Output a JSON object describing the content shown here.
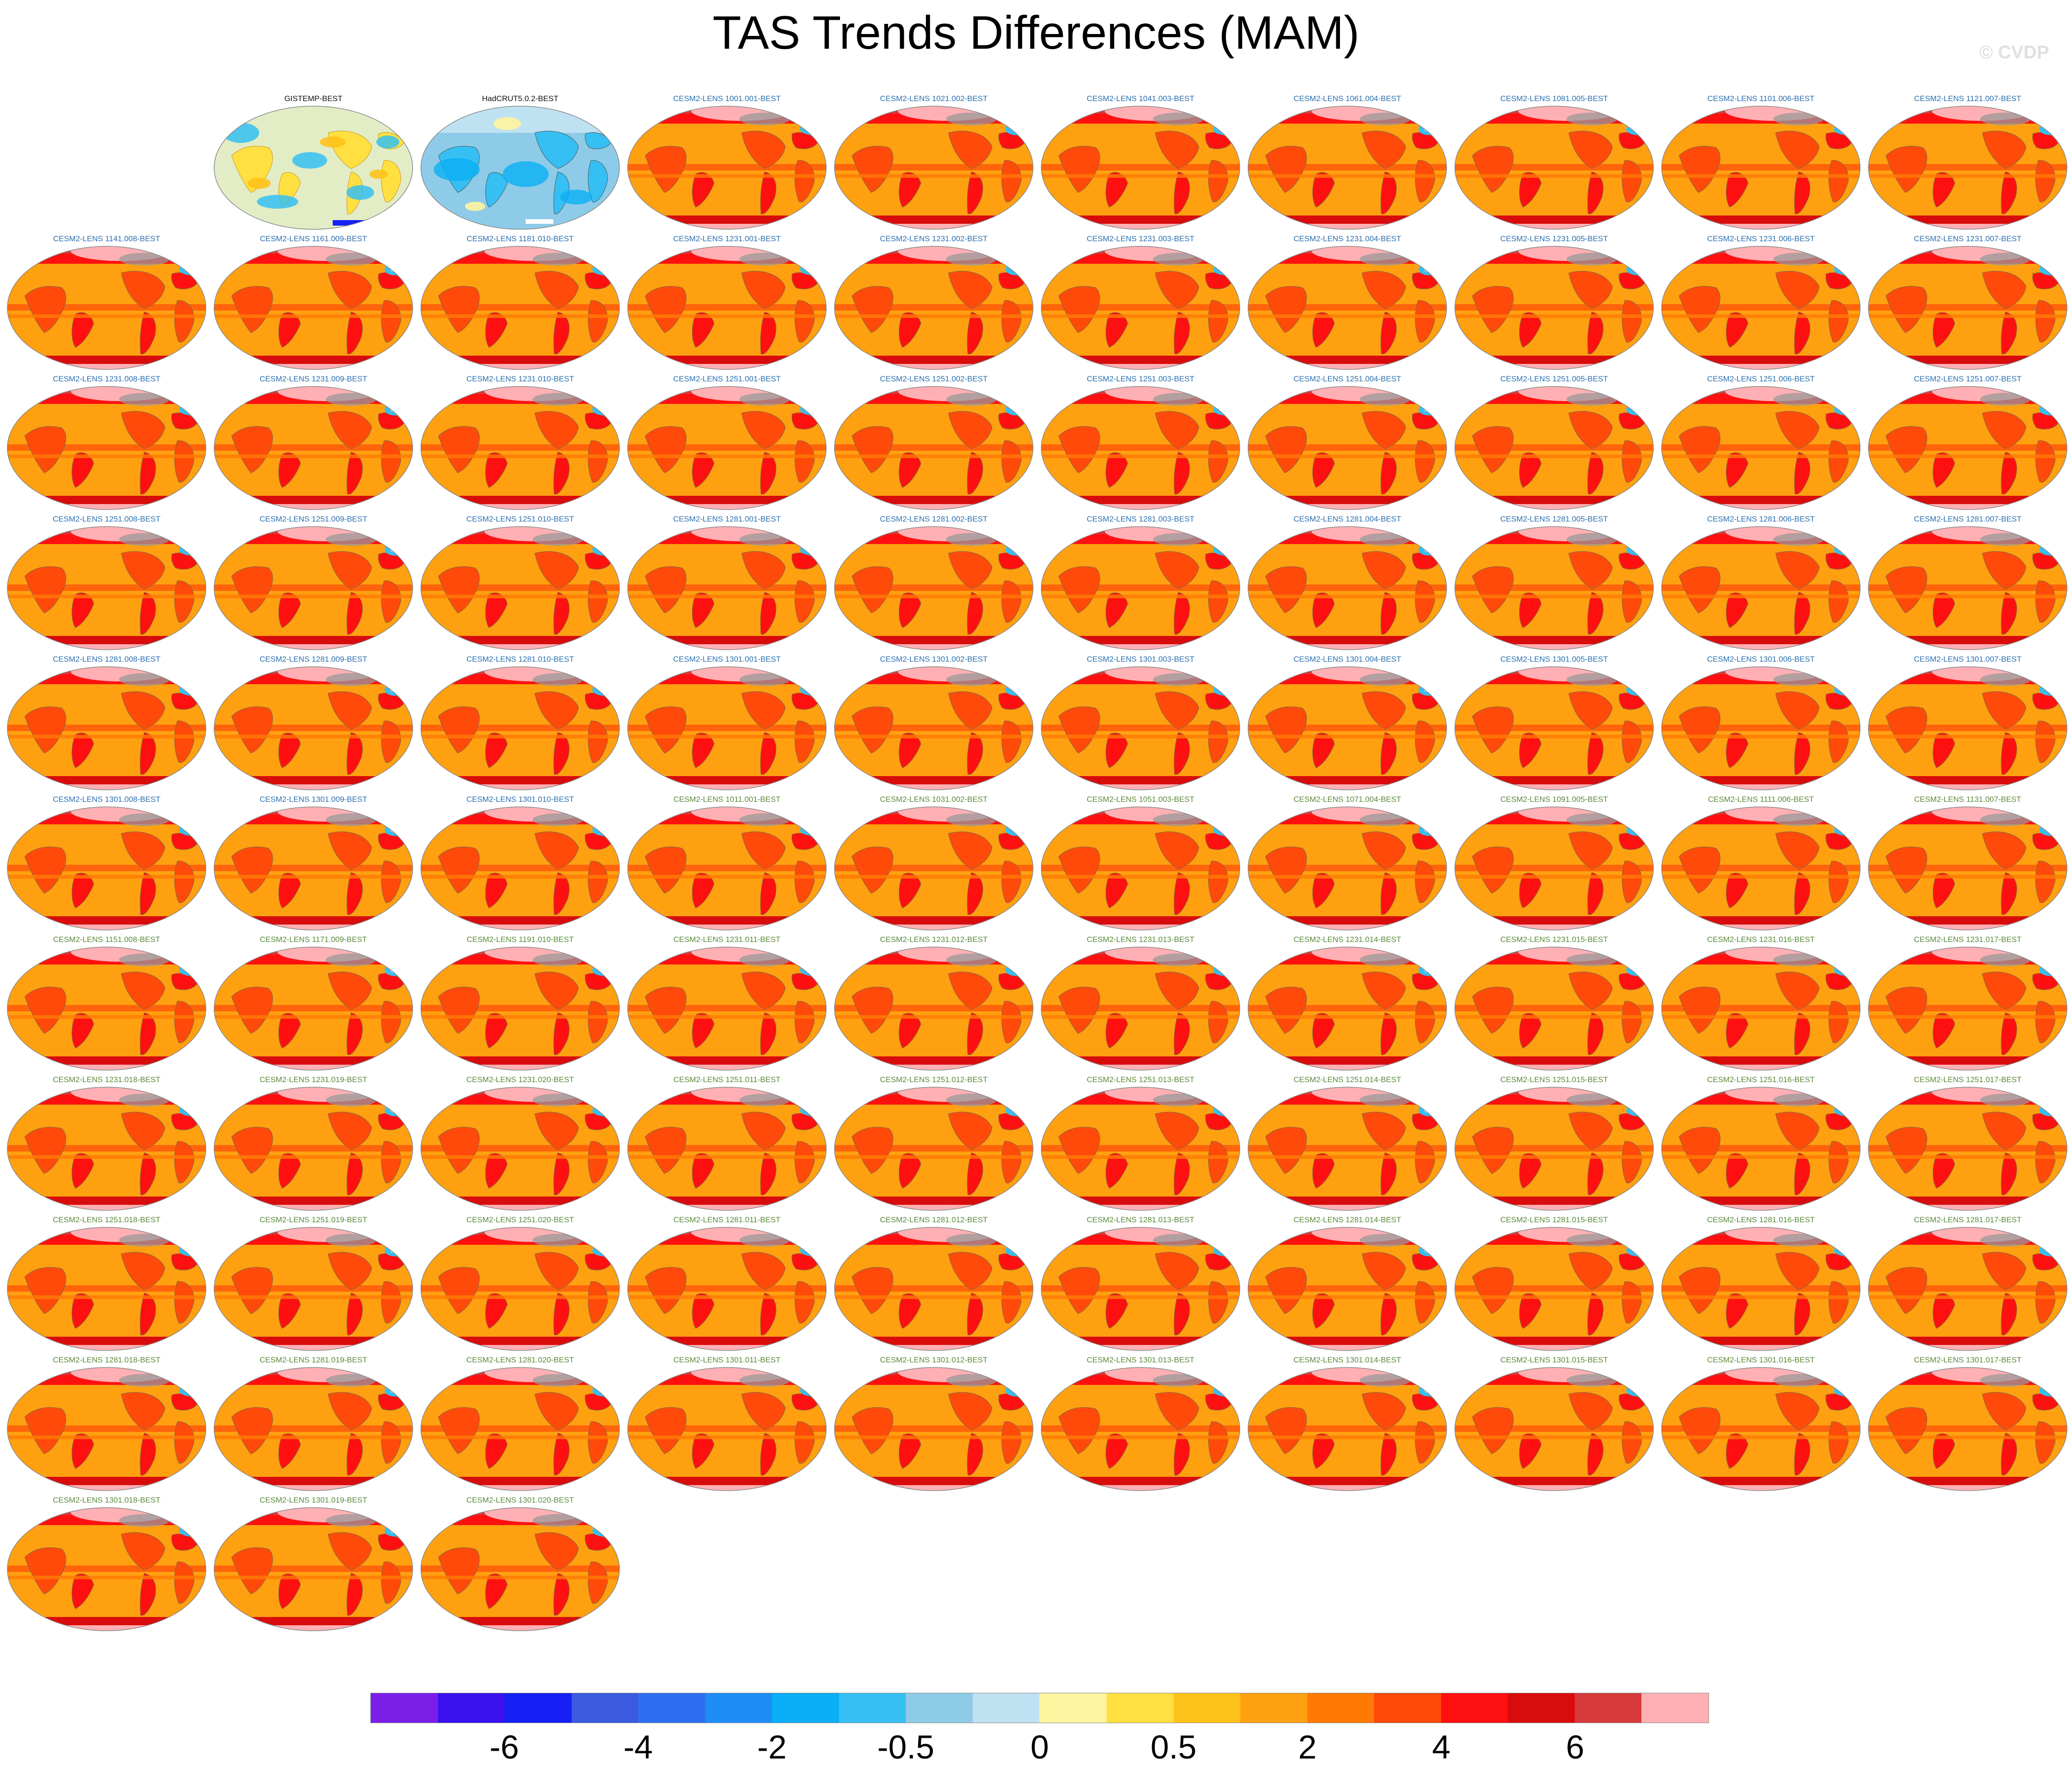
{
  "title": "TAS Trends Differences (MAM)",
  "copyright": "© CVDP",
  "colors": {
    "cb": [
      "#7b1fe8",
      "#3a12f0",
      "#1620f5",
      "#3a5be0",
      "#2d6ff0",
      "#1e8df5",
      "#0aaff5",
      "#35bff2",
      "#8ecbe8",
      "#bfe2f2",
      "#fff5a0",
      "#ffe040",
      "#ffc21a",
      "#ffa010",
      "#ff7a05",
      "#ff4a0a",
      "#ff1010",
      "#d80c0c",
      "#d63a3a",
      "#ffb0b4"
    ],
    "land_obs": "#d0a030"
  },
  "panel_kinds": {
    "obs_gistemp": "obs1",
    "obs_hadcrut": "obs2",
    "model": "model"
  },
  "colorbar_labels": [
    "-6",
    "-4",
    "-2",
    "-0.5",
    "0",
    "0.5",
    "2",
    "4",
    "6"
  ],
  "panels": [
    {
      "label": "GISTEMP-BEST",
      "color": "black",
      "kind": "obs1"
    },
    {
      "label": "HadCRUT5.0.2-BEST",
      "color": "black",
      "kind": "obs2"
    },
    {
      "label": "CESM2-LENS 1001.001-BEST",
      "color": "blue",
      "kind": "model"
    },
    {
      "label": "CESM2-LENS 1021.002-BEST",
      "color": "blue",
      "kind": "model"
    },
    {
      "label": "CESM2-LENS 1041.003-BEST",
      "color": "blue",
      "kind": "model"
    },
    {
      "label": "CESM2-LENS 1061.004-BEST",
      "color": "blue",
      "kind": "model"
    },
    {
      "label": "CESM2-LENS 1081.005-BEST",
      "color": "blue",
      "kind": "model"
    },
    {
      "label": "CESM2-LENS 1101.006-BEST",
      "color": "blue",
      "kind": "model"
    },
    {
      "label": "CESM2-LENS 1121.007-BEST",
      "color": "blue",
      "kind": "model"
    },
    {
      "label": "CESM2-LENS 1141.008-BEST",
      "color": "blue",
      "kind": "model"
    },
    {
      "label": "CESM2-LENS 1161.009-BEST",
      "color": "blue",
      "kind": "model"
    },
    {
      "label": "CESM2-LENS 1181.010-BEST",
      "color": "blue",
      "kind": "model"
    },
    {
      "label": "CESM2-LENS 1231.001-BEST",
      "color": "blue",
      "kind": "model"
    },
    {
      "label": "CESM2-LENS 1231.002-BEST",
      "color": "blue",
      "kind": "model"
    },
    {
      "label": "CESM2-LENS 1231.003-BEST",
      "color": "blue",
      "kind": "model"
    },
    {
      "label": "CESM2-LENS 1231.004-BEST",
      "color": "blue",
      "kind": "model"
    },
    {
      "label": "CESM2-LENS 1231.005-BEST",
      "color": "blue",
      "kind": "model"
    },
    {
      "label": "CESM2-LENS 1231.006-BEST",
      "color": "blue",
      "kind": "model"
    },
    {
      "label": "CESM2-LENS 1231.007-BEST",
      "color": "blue",
      "kind": "model"
    },
    {
      "label": "CESM2-LENS 1231.008-BEST",
      "color": "blue",
      "kind": "model"
    },
    {
      "label": "CESM2-LENS 1231.009-BEST",
      "color": "blue",
      "kind": "model"
    },
    {
      "label": "CESM2-LENS 1231.010-BEST",
      "color": "blue",
      "kind": "model"
    },
    {
      "label": "CESM2-LENS 1251.001-BEST",
      "color": "blue",
      "kind": "model"
    },
    {
      "label": "CESM2-LENS 1251.002-BEST",
      "color": "blue",
      "kind": "model"
    },
    {
      "label": "CESM2-LENS 1251.003-BEST",
      "color": "blue",
      "kind": "model"
    },
    {
      "label": "CESM2-LENS 1251.004-BEST",
      "color": "blue",
      "kind": "model"
    },
    {
      "label": "CESM2-LENS 1251.005-BEST",
      "color": "blue",
      "kind": "model"
    },
    {
      "label": "CESM2-LENS 1251.006-BEST",
      "color": "blue",
      "kind": "model"
    },
    {
      "label": "CESM2-LENS 1251.007-BEST",
      "color": "blue",
      "kind": "model"
    },
    {
      "label": "CESM2-LENS 1251.008-BEST",
      "color": "blue",
      "kind": "model"
    },
    {
      "label": "CESM2-LENS 1251.009-BEST",
      "color": "blue",
      "kind": "model"
    },
    {
      "label": "CESM2-LENS 1251.010-BEST",
      "color": "blue",
      "kind": "model"
    },
    {
      "label": "CESM2-LENS 1281.001-BEST",
      "color": "blue",
      "kind": "model"
    },
    {
      "label": "CESM2-LENS 1281.002-BEST",
      "color": "blue",
      "kind": "model"
    },
    {
      "label": "CESM2-LENS 1281.003-BEST",
      "color": "blue",
      "kind": "model"
    },
    {
      "label": "CESM2-LENS 1281.004-BEST",
      "color": "blue",
      "kind": "model"
    },
    {
      "label": "CESM2-LENS 1281.005-BEST",
      "color": "blue",
      "kind": "model"
    },
    {
      "label": "CESM2-LENS 1281.006-BEST",
      "color": "blue",
      "kind": "model"
    },
    {
      "label": "CESM2-LENS 1281.007-BEST",
      "color": "blue",
      "kind": "model"
    },
    {
      "label": "CESM2-LENS 1281.008-BEST",
      "color": "blue",
      "kind": "model"
    },
    {
      "label": "CESM2-LENS 1281.009-BEST",
      "color": "blue",
      "kind": "model"
    },
    {
      "label": "CESM2-LENS 1281.010-BEST",
      "color": "blue",
      "kind": "model"
    },
    {
      "label": "CESM2-LENS 1301.001-BEST",
      "color": "blue",
      "kind": "model"
    },
    {
      "label": "CESM2-LENS 1301.002-BEST",
      "color": "blue",
      "kind": "model"
    },
    {
      "label": "CESM2-LENS 1301.003-BEST",
      "color": "blue",
      "kind": "model"
    },
    {
      "label": "CESM2-LENS 1301.004-BEST",
      "color": "blue",
      "kind": "model"
    },
    {
      "label": "CESM2-LENS 1301.005-BEST",
      "color": "blue",
      "kind": "model"
    },
    {
      "label": "CESM2-LENS 1301.006-BEST",
      "color": "blue",
      "kind": "model"
    },
    {
      "label": "CESM2-LENS 1301.007-BEST",
      "color": "blue",
      "kind": "model"
    },
    {
      "label": "CESM2-LENS 1301.008-BEST",
      "color": "blue",
      "kind": "model"
    },
    {
      "label": "CESM2-LENS 1301.009-BEST",
      "color": "blue",
      "kind": "model"
    },
    {
      "label": "CESM2-LENS 1301.010-BEST",
      "color": "blue",
      "kind": "model"
    },
    {
      "label": "CESM2-LENS 1011.001-BEST",
      "color": "green",
      "kind": "model"
    },
    {
      "label": "CESM2-LENS 1031.002-BEST",
      "color": "green",
      "kind": "model"
    },
    {
      "label": "CESM2-LENS 1051.003-BEST",
      "color": "green",
      "kind": "model"
    },
    {
      "label": "CESM2-LENS 1071.004-BEST",
      "color": "green",
      "kind": "model"
    },
    {
      "label": "CESM2-LENS 1091.005-BEST",
      "color": "green",
      "kind": "model"
    },
    {
      "label": "CESM2-LENS 1111.006-BEST",
      "color": "green",
      "kind": "model"
    },
    {
      "label": "CESM2-LENS 1131.007-BEST",
      "color": "green",
      "kind": "model"
    },
    {
      "label": "CESM2-LENS 1151.008-BEST",
      "color": "green",
      "kind": "model"
    },
    {
      "label": "CESM2-LENS 1171.009-BEST",
      "color": "green",
      "kind": "model"
    },
    {
      "label": "CESM2-LENS 1191.010-BEST",
      "color": "green",
      "kind": "model"
    },
    {
      "label": "CESM2-LENS 1231.011-BEST",
      "color": "green",
      "kind": "model"
    },
    {
      "label": "CESM2-LENS 1231.012-BEST",
      "color": "green",
      "kind": "model"
    },
    {
      "label": "CESM2-LENS 1231.013-BEST",
      "color": "green",
      "kind": "model"
    },
    {
      "label": "CESM2-LENS 1231.014-BEST",
      "color": "green",
      "kind": "model"
    },
    {
      "label": "CESM2-LENS 1231.015-BEST",
      "color": "green",
      "kind": "model"
    },
    {
      "label": "CESM2-LENS 1231.016-BEST",
      "color": "green",
      "kind": "model"
    },
    {
      "label": "CESM2-LENS 1231.017-BEST",
      "color": "green",
      "kind": "model"
    },
    {
      "label": "CESM2-LENS 1231.018-BEST",
      "color": "green",
      "kind": "model"
    },
    {
      "label": "CESM2-LENS 1231.019-BEST",
      "color": "green",
      "kind": "model"
    },
    {
      "label": "CESM2-LENS 1231.020-BEST",
      "color": "green",
      "kind": "model"
    },
    {
      "label": "CESM2-LENS 1251.011-BEST",
      "color": "green",
      "kind": "model"
    },
    {
      "label": "CESM2-LENS 1251.012-BEST",
      "color": "green",
      "kind": "model"
    },
    {
      "label": "CESM2-LENS 1251.013-BEST",
      "color": "green",
      "kind": "model"
    },
    {
      "label": "CESM2-LENS 1251.014-BEST",
      "color": "green",
      "kind": "model"
    },
    {
      "label": "CESM2-LENS 1251.015-BEST",
      "color": "green",
      "kind": "model"
    },
    {
      "label": "CESM2-LENS 1251.016-BEST",
      "color": "green",
      "kind": "model"
    },
    {
      "label": "CESM2-LENS 1251.017-BEST",
      "color": "green",
      "kind": "model"
    },
    {
      "label": "CESM2-LENS 1251.018-BEST",
      "color": "green",
      "kind": "model"
    },
    {
      "label": "CESM2-LENS 1251.019-BEST",
      "color": "green",
      "kind": "model"
    },
    {
      "label": "CESM2-LENS 1251.020-BEST",
      "color": "green",
      "kind": "model"
    },
    {
      "label": "CESM2-LENS 1281.011-BEST",
      "color": "green",
      "kind": "model"
    },
    {
      "label": "CESM2-LENS 1281.012-BEST",
      "color": "green",
      "kind": "model"
    },
    {
      "label": "CESM2-LENS 1281.013-BEST",
      "color": "green",
      "kind": "model"
    },
    {
      "label": "CESM2-LENS 1281.014-BEST",
      "color": "green",
      "kind": "model"
    },
    {
      "label": "CESM2-LENS 1281.015-BEST",
      "color": "green",
      "kind": "model"
    },
    {
      "label": "CESM2-LENS 1281.016-BEST",
      "color": "green",
      "kind": "model"
    },
    {
      "label": "CESM2-LENS 1281.017-BEST",
      "color": "green",
      "kind": "model"
    },
    {
      "label": "CESM2-LENS 1281.018-BEST",
      "color": "green",
      "kind": "model"
    },
    {
      "label": "CESM2-LENS 1281.019-BEST",
      "color": "green",
      "kind": "model"
    },
    {
      "label": "CESM2-LENS 1281.020-BEST",
      "color": "green",
      "kind": "model"
    },
    {
      "label": "CESM2-LENS 1301.011-BEST",
      "color": "green",
      "kind": "model"
    },
    {
      "label": "CESM2-LENS 1301.012-BEST",
      "color": "green",
      "kind": "model"
    },
    {
      "label": "CESM2-LENS 1301.013-BEST",
      "color": "green",
      "kind": "model"
    },
    {
      "label": "CESM2-LENS 1301.014-BEST",
      "color": "green",
      "kind": "model"
    },
    {
      "label": "CESM2-LENS 1301.015-BEST",
      "color": "green",
      "kind": "model"
    },
    {
      "label": "CESM2-LENS 1301.016-BEST",
      "color": "green",
      "kind": "model"
    },
    {
      "label": "CESM2-LENS 1301.017-BEST",
      "color": "green",
      "kind": "model"
    },
    {
      "label": "CESM2-LENS 1301.018-BEST",
      "color": "green",
      "kind": "model"
    },
    {
      "label": "CESM2-LENS 1301.019-BEST",
      "color": "green",
      "kind": "model"
    },
    {
      "label": "CESM2-LENS 1301.020-BEST",
      "color": "green",
      "kind": "model"
    }
  ]
}
